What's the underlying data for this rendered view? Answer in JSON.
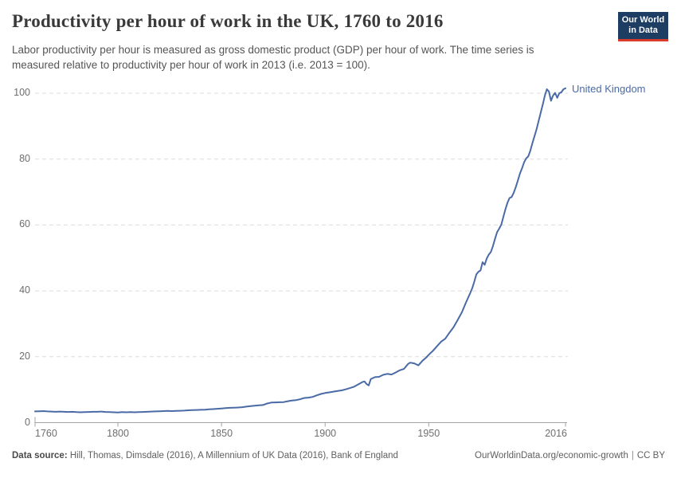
{
  "header": {
    "title": "Productivity per hour of work in the UK, 1760 to 2016",
    "subtitle_lines": [
      "Labor productivity per hour is measured as gross domestic product (GDP) per hour of work. The time series is",
      "measured relative to productivity per hour of work in 2013 (i.e. 2013 = 100)."
    ],
    "logo": {
      "line1": "Our World",
      "line2": "in Data",
      "bg_color": "#1d3d63",
      "accent_color": "#d93b2b"
    }
  },
  "chart_data": {
    "type": "line",
    "title": "Productivity per hour of work in the UK, 1760 to 2016",
    "xlabel": "",
    "ylabel": "",
    "xlim": [
      1760,
      2016
    ],
    "ylim": [
      0,
      100
    ],
    "x_ticks": [
      1760,
      1800,
      1850,
      1900,
      1950,
      2016
    ],
    "y_ticks": [
      0,
      20,
      40,
      60,
      80,
      100
    ],
    "grid": "horizontal-dashed",
    "legend_position": "end-of-line",
    "axis_color": "#a3a3a3",
    "gridline_color": "#dcdcdc",
    "series": [
      {
        "name": "United Kingdom",
        "color": "#4a6aa5",
        "points": [
          [
            1760,
            3.4
          ],
          [
            1762,
            3.45
          ],
          [
            1764,
            3.5
          ],
          [
            1766,
            3.4
          ],
          [
            1768,
            3.35
          ],
          [
            1770,
            3.3
          ],
          [
            1772,
            3.35
          ],
          [
            1774,
            3.3
          ],
          [
            1776,
            3.25
          ],
          [
            1778,
            3.3
          ],
          [
            1780,
            3.2
          ],
          [
            1782,
            3.15
          ],
          [
            1784,
            3.2
          ],
          [
            1786,
            3.25
          ],
          [
            1788,
            3.3
          ],
          [
            1790,
            3.3
          ],
          [
            1792,
            3.35
          ],
          [
            1794,
            3.25
          ],
          [
            1796,
            3.2
          ],
          [
            1798,
            3.15
          ],
          [
            1800,
            3.1
          ],
          [
            1802,
            3.2
          ],
          [
            1804,
            3.15
          ],
          [
            1806,
            3.2
          ],
          [
            1808,
            3.15
          ],
          [
            1810,
            3.2
          ],
          [
            1812,
            3.25
          ],
          [
            1814,
            3.3
          ],
          [
            1816,
            3.35
          ],
          [
            1818,
            3.4
          ],
          [
            1820,
            3.45
          ],
          [
            1822,
            3.5
          ],
          [
            1824,
            3.55
          ],
          [
            1826,
            3.5
          ],
          [
            1828,
            3.55
          ],
          [
            1830,
            3.6
          ],
          [
            1832,
            3.65
          ],
          [
            1834,
            3.75
          ],
          [
            1836,
            3.8
          ],
          [
            1838,
            3.85
          ],
          [
            1840,
            3.9
          ],
          [
            1842,
            3.95
          ],
          [
            1844,
            4.05
          ],
          [
            1846,
            4.1
          ],
          [
            1848,
            4.2
          ],
          [
            1850,
            4.3
          ],
          [
            1852,
            4.4
          ],
          [
            1854,
            4.5
          ],
          [
            1856,
            4.55
          ],
          [
            1858,
            4.6
          ],
          [
            1860,
            4.7
          ],
          [
            1862,
            4.85
          ],
          [
            1864,
            5.0
          ],
          [
            1866,
            5.15
          ],
          [
            1868,
            5.25
          ],
          [
            1870,
            5.35
          ],
          [
            1872,
            5.8
          ],
          [
            1874,
            6.1
          ],
          [
            1876,
            6.15
          ],
          [
            1878,
            6.2
          ],
          [
            1880,
            6.25
          ],
          [
            1882,
            6.5
          ],
          [
            1884,
            6.7
          ],
          [
            1886,
            6.85
          ],
          [
            1888,
            7.1
          ],
          [
            1890,
            7.5
          ],
          [
            1892,
            7.6
          ],
          [
            1894,
            7.8
          ],
          [
            1896,
            8.3
          ],
          [
            1898,
            8.7
          ],
          [
            1900,
            9.0
          ],
          [
            1902,
            9.2
          ],
          [
            1904,
            9.4
          ],
          [
            1906,
            9.6
          ],
          [
            1908,
            9.8
          ],
          [
            1910,
            10.1
          ],
          [
            1912,
            10.5
          ],
          [
            1914,
            10.9
          ],
          [
            1916,
            11.6
          ],
          [
            1918,
            12.3
          ],
          [
            1919,
            12.5
          ],
          [
            1920,
            11.7
          ],
          [
            1921,
            11.3
          ],
          [
            1922,
            13.2
          ],
          [
            1924,
            13.8
          ],
          [
            1926,
            13.9
          ],
          [
            1928,
            14.5
          ],
          [
            1930,
            14.8
          ],
          [
            1932,
            14.6
          ],
          [
            1934,
            15.2
          ],
          [
            1936,
            15.9
          ],
          [
            1938,
            16.3
          ],
          [
            1940,
            17.8
          ],
          [
            1941,
            18.2
          ],
          [
            1943,
            18.0
          ],
          [
            1945,
            17.4
          ],
          [
            1947,
            18.8
          ],
          [
            1949,
            19.9
          ],
          [
            1950,
            20.6
          ],
          [
            1952,
            21.8
          ],
          [
            1954,
            23.2
          ],
          [
            1956,
            24.6
          ],
          [
            1958,
            25.5
          ],
          [
            1960,
            27.3
          ],
          [
            1962,
            29.0
          ],
          [
            1964,
            31.2
          ],
          [
            1966,
            33.5
          ],
          [
            1968,
            36.5
          ],
          [
            1970,
            39.3
          ],
          [
            1971,
            40.8
          ],
          [
            1972,
            42.8
          ],
          [
            1973,
            45.0
          ],
          [
            1974,
            45.8
          ],
          [
            1975,
            46.2
          ],
          [
            1976,
            48.7
          ],
          [
            1977,
            47.9
          ],
          [
            1978,
            49.8
          ],
          [
            1979,
            51.0
          ],
          [
            1980,
            51.8
          ],
          [
            1981,
            53.6
          ],
          [
            1982,
            55.8
          ],
          [
            1983,
            57.8
          ],
          [
            1984,
            58.9
          ],
          [
            1985,
            60.1
          ],
          [
            1986,
            62.5
          ],
          [
            1987,
            64.8
          ],
          [
            1988,
            66.8
          ],
          [
            1989,
            68.2
          ],
          [
            1990,
            68.5
          ],
          [
            1991,
            69.8
          ],
          [
            1992,
            71.5
          ],
          [
            1993,
            73.5
          ],
          [
            1994,
            75.6
          ],
          [
            1995,
            77.2
          ],
          [
            1996,
            79.0
          ],
          [
            1997,
            80.2
          ],
          [
            1998,
            80.8
          ],
          [
            1999,
            82.5
          ],
          [
            2000,
            84.8
          ],
          [
            2001,
            86.9
          ],
          [
            2002,
            89.0
          ],
          [
            2003,
            91.5
          ],
          [
            2004,
            94.0
          ],
          [
            2005,
            96.5
          ],
          [
            2006,
            99.2
          ],
          [
            2007,
            101.2
          ],
          [
            2008,
            100.5
          ],
          [
            2009,
            97.7
          ],
          [
            2010,
            99.3
          ],
          [
            2011,
            100.1
          ],
          [
            2012,
            98.6
          ],
          [
            2013,
            100.0
          ],
          [
            2014,
            100.3
          ],
          [
            2015,
            101.2
          ],
          [
            2016,
            101.5
          ]
        ]
      }
    ]
  },
  "footer": {
    "source_label": "Data source:",
    "source_text": " Hill, Thomas, Dimsdale (2016), A Millennium of UK Data (2016), Bank of England",
    "link": "OurWorldinData.org/economic-growth",
    "separator": "|",
    "license": "CC BY"
  }
}
